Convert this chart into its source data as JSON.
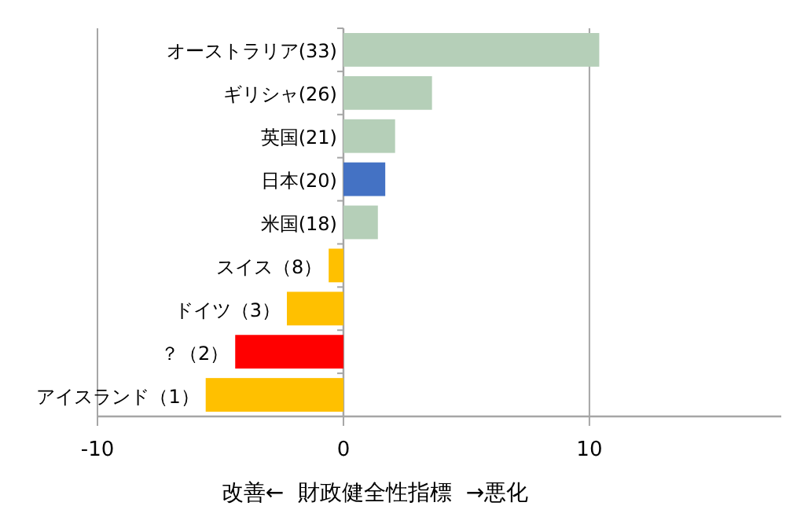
{
  "chart_data": {
    "type": "bar",
    "orientation": "horizontal",
    "categories": [
      "オーストラリア(33)",
      "ギリシャ(26)",
      "英国(21)",
      "日本(20)",
      "米国(18)",
      "スイス（8）",
      "ドイツ（3）",
      "？（2）",
      "アイスランド（1）"
    ],
    "values": [
      10.4,
      3.6,
      2.1,
      1.7,
      1.4,
      -0.6,
      -2.3,
      -4.4,
      -5.6
    ],
    "colors": [
      "#b5cfb8",
      "#b5cfb8",
      "#b5cfb8",
      "#4472c4",
      "#b5cfb8",
      "#ffc000",
      "#ffc000",
      "#ff0000",
      "#ffc000"
    ],
    "xlim": [
      -10,
      17.8
    ],
    "xticks": [
      -10,
      0,
      10
    ],
    "grid": "x",
    "xlabel": "改善←  財政健全性指標  →悪化"
  }
}
